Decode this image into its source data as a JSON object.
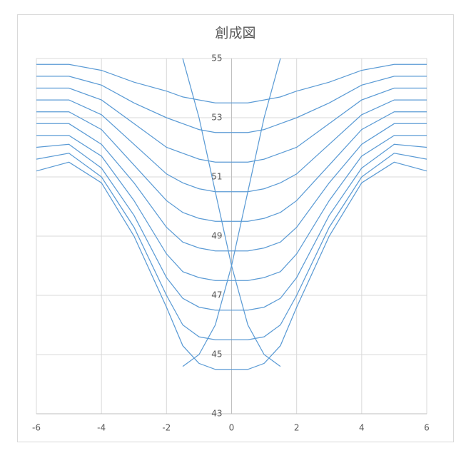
{
  "chart_data": {
    "type": "line",
    "title": "創成図",
    "x": [
      -6,
      -5,
      -4,
      -3,
      -2,
      -1.5,
      -1,
      -0.5,
      0,
      0.5,
      1,
      1.5,
      2,
      3,
      4,
      5,
      6
    ],
    "color": "#5b9bd5",
    "series": [
      {
        "values": [
          51.2,
          51.5,
          50.8,
          49.0,
          46.6,
          45.3,
          44.7,
          44.5,
          44.5,
          44.5,
          44.7,
          45.3,
          46.6,
          49.0,
          50.8,
          51.5,
          51.2
        ]
      },
      {
        "values": [
          51.6,
          51.8,
          51.0,
          49.3,
          47.0,
          46.0,
          45.6,
          45.5,
          45.5,
          45.5,
          45.6,
          46.0,
          47.0,
          49.3,
          51.0,
          51.8,
          51.6
        ]
      },
      {
        "values": [
          52.0,
          52.1,
          51.3,
          49.7,
          47.6,
          46.9,
          46.6,
          46.5,
          46.5,
          46.5,
          46.6,
          46.9,
          47.6,
          49.7,
          51.3,
          52.1,
          52.0
        ]
      },
      {
        "values": [
          52.4,
          52.4,
          51.7,
          50.2,
          48.4,
          47.8,
          47.6,
          47.5,
          47.5,
          47.5,
          47.6,
          47.8,
          48.4,
          50.2,
          51.7,
          52.4,
          52.4
        ]
      },
      {
        "values": [
          52.8,
          52.8,
          52.1,
          50.8,
          49.3,
          48.8,
          48.6,
          48.5,
          48.5,
          48.5,
          48.6,
          48.8,
          49.3,
          50.8,
          52.1,
          52.8,
          52.8
        ]
      },
      {
        "values": [
          53.2,
          53.2,
          52.6,
          51.4,
          50.2,
          49.8,
          49.6,
          49.5,
          49.5,
          49.5,
          49.6,
          49.8,
          50.2,
          51.4,
          52.6,
          53.2,
          53.2
        ]
      },
      {
        "values": [
          53.6,
          53.6,
          53.1,
          52.1,
          51.1,
          50.8,
          50.6,
          50.5,
          50.5,
          50.5,
          50.6,
          50.8,
          51.1,
          52.1,
          53.1,
          53.6,
          53.6
        ]
      },
      {
        "values": [
          54.0,
          54.0,
          53.6,
          52.8,
          52.0,
          51.8,
          51.6,
          51.5,
          51.5,
          51.5,
          51.6,
          51.8,
          52.0,
          52.8,
          53.6,
          54.0,
          54.0
        ]
      },
      {
        "values": [
          54.4,
          54.4,
          54.1,
          53.5,
          53.0,
          52.8,
          52.6,
          52.5,
          52.5,
          52.5,
          52.6,
          52.8,
          53.0,
          53.5,
          54.1,
          54.4,
          54.4
        ]
      },
      {
        "values": [
          54.8,
          54.8,
          54.6,
          54.2,
          53.9,
          53.7,
          53.6,
          53.5,
          53.5,
          53.5,
          53.6,
          53.7,
          53.9,
          54.2,
          54.6,
          54.8,
          54.8
        ]
      },
      {
        "values": [
          null,
          null,
          null,
          null,
          null,
          55.0,
          53.0,
          50.5,
          48.0,
          46.0,
          45.0,
          44.6,
          null,
          null,
          null,
          null,
          null
        ]
      },
      {
        "values": [
          null,
          null,
          null,
          null,
          null,
          44.6,
          45.0,
          46.0,
          48.0,
          50.5,
          53.0,
          55.0,
          null,
          null,
          null,
          null,
          null
        ]
      }
    ],
    "xlim": [
      -6,
      6
    ],
    "xticks": [
      -6,
      -4,
      -2,
      0,
      2,
      4,
      6
    ],
    "ylim": [
      43,
      55
    ],
    "yticks": [
      43,
      45,
      47,
      49,
      51,
      53,
      55
    ],
    "grid": true
  }
}
